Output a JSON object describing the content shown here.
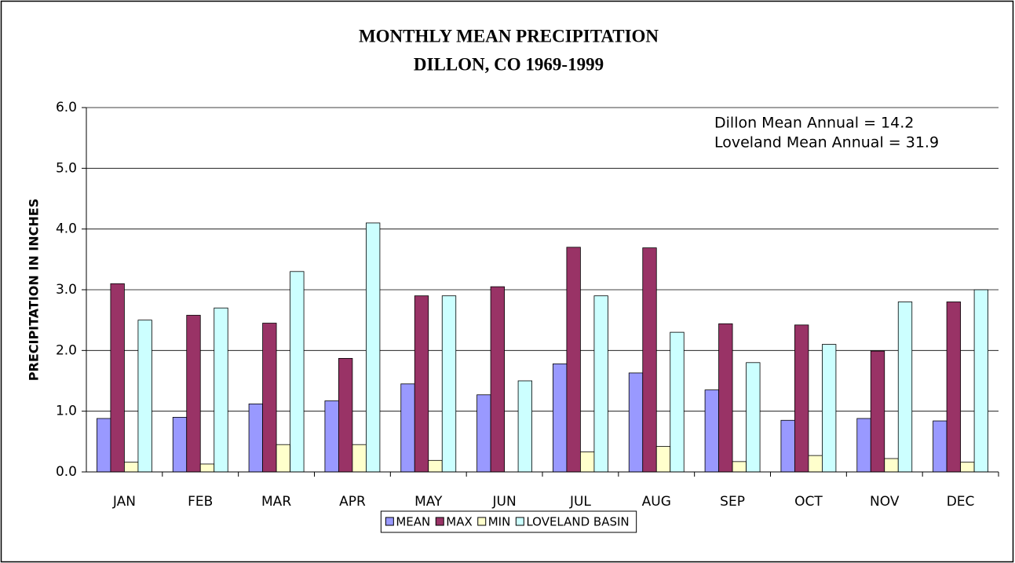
{
  "chart_data": {
    "type": "bar",
    "title": [
      "MONTHLY MEAN PRECIPITATION",
      "DILLON, CO  1969-1999"
    ],
    "y_label": "PRECIPITATION IN INCHES",
    "annotations": [
      "Dillon Mean Annual = 14.2",
      "Loveland Mean Annual = 31.9"
    ],
    "categories": [
      "JAN",
      "FEB",
      "MAR",
      "APR",
      "MAY",
      "JUN",
      "JUL",
      "AUG",
      "SEP",
      "OCT",
      "NOV",
      "DEC"
    ],
    "series": [
      {
        "name": "MEAN",
        "color": "#9999ff",
        "values": [
          0.88,
          0.9,
          1.12,
          1.17,
          1.45,
          1.27,
          1.78,
          1.63,
          1.35,
          0.85,
          0.88,
          0.84
        ]
      },
      {
        "name": "MAX",
        "color": "#993366",
        "values": [
          3.1,
          2.58,
          2.45,
          1.87,
          2.9,
          3.05,
          3.7,
          3.69,
          2.44,
          2.42,
          1.99,
          2.8
        ]
      },
      {
        "name": "MIN",
        "color": "#ffffcc",
        "values": [
          0.16,
          0.13,
          0.45,
          0.45,
          0.19,
          0,
          0.33,
          0.42,
          0.17,
          0.27,
          0.22,
          0.16
        ]
      },
      {
        "name": "LOVELAND BASIN",
        "color": "#ccffff",
        "values": [
          2.5,
          2.7,
          3.3,
          4.1,
          2.9,
          1.5,
          2.9,
          2.3,
          1.8,
          2.1,
          2.8,
          3.0
        ]
      }
    ],
    "ylim": [
      0,
      6
    ],
    "yticks": [
      {
        "value": 0,
        "label": "0.0"
      },
      {
        "value": 1,
        "label": "1.0"
      },
      {
        "value": 2,
        "label": "2.0"
      },
      {
        "value": 3,
        "label": "3.0"
      },
      {
        "value": 4,
        "label": "4.0"
      },
      {
        "value": 5,
        "label": "5.0"
      },
      {
        "value": 6,
        "label": "6.0"
      }
    ],
    "grid": true,
    "legend": "bottom"
  }
}
